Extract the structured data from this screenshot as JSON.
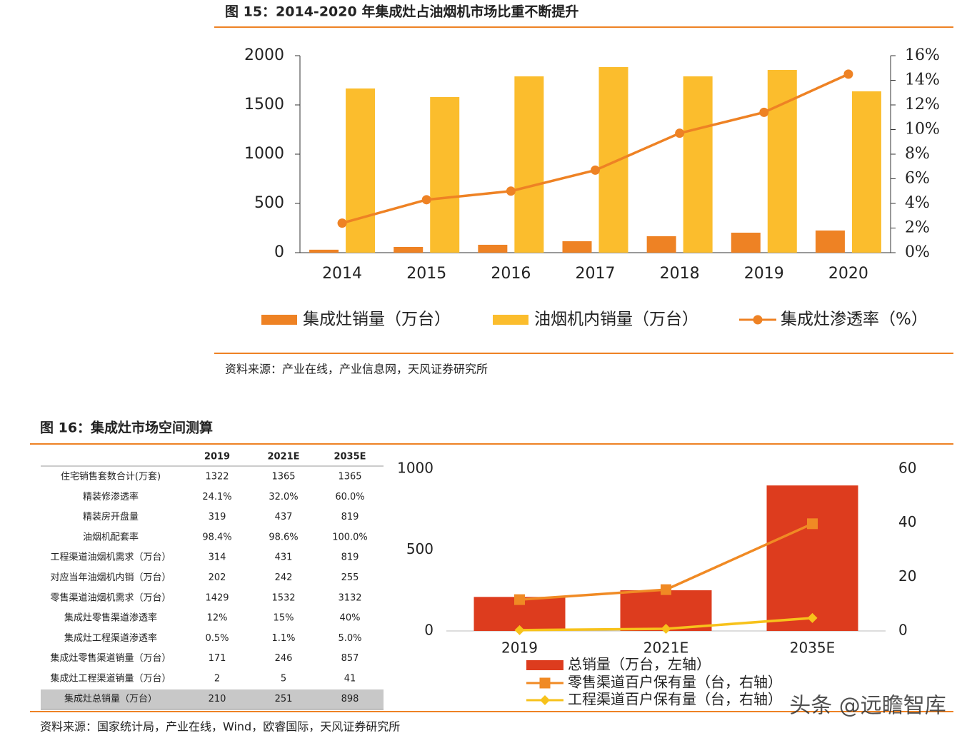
{
  "chart_data": [
    {
      "type": "bar_line",
      "title": "图 15：2014-2020 年集成灶占油烟机市场比重不断提升",
      "source": "资料来源：产业在线，产业信息网，天风证券研究所",
      "categories": [
        "2014",
        "2015",
        "2016",
        "2017",
        "2018",
        "2019",
        "2020"
      ],
      "ylim": [
        0,
        2000
      ],
      "yticks": [
        0,
        500,
        1000,
        1500,
        2000
      ],
      "y2lim": [
        0,
        16
      ],
      "y2ticks": [
        {
          "value": 0,
          "label": "0%"
        },
        {
          "value": 2,
          "label": "2%"
        },
        {
          "value": 4,
          "label": "4%"
        },
        {
          "value": 6,
          "label": "6%"
        },
        {
          "value": 8,
          "label": "8%"
        },
        {
          "value": 10,
          "label": "10%"
        },
        {
          "value": 12,
          "label": "12%"
        },
        {
          "value": 14,
          "label": "14%"
        },
        {
          "value": 16,
          "label": "16%"
        }
      ],
      "series": [
        {
          "name": "集成灶销量（万台）",
          "kind": "bar",
          "color": "#ee8224",
          "values": [
            30,
            58,
            80,
            116,
            167,
            203,
            225
          ]
        },
        {
          "name": "油烟机内销量（万台）",
          "kind": "bar",
          "color": "#fbbd2d",
          "values": [
            1667,
            1580,
            1790,
            1884,
            1790,
            1855,
            1638
          ]
        },
        {
          "name": "集成灶渗透率（%）",
          "kind": "line",
          "marker": "circle",
          "axis": "y2",
          "color": "#ee8224",
          "values": [
            2.4,
            4.3,
            5.0,
            6.7,
            9.7,
            11.4,
            14.5
          ]
        }
      ]
    },
    {
      "type": "bar_line",
      "categories": [
        "2019",
        "2021E",
        "2035E"
      ],
      "ylim": [
        0,
        1000
      ],
      "yticks": [
        0,
        500,
        1000
      ],
      "y2lim": [
        0,
        60
      ],
      "y2ticks": [
        0,
        20,
        40,
        60
      ],
      "series": [
        {
          "name": "总销量（万台，左轴）",
          "kind": "bar",
          "color": "#dd3c1e",
          "values": [
            210,
            251,
            898
          ]
        },
        {
          "name": "零售渠道百户保有量（台，右轴）",
          "kind": "line",
          "marker": "square",
          "axis": "y2",
          "color": "#f08a24",
          "values": [
            11.6,
            15.3,
            39.7
          ]
        },
        {
          "name": "工程渠道百户保有量（台，右轴）",
          "kind": "line",
          "marker": "diamond",
          "axis": "y2",
          "color": "#f7c21b",
          "values": [
            0.3,
            0.8,
            4.8
          ]
        }
      ]
    }
  ],
  "figure16": {
    "title": "图 16：集成灶市场空间测算",
    "source": "资料来源：国家统计局，产业在线，Wind，欧睿国际，天风证券研究所",
    "columns": [
      "2019",
      "2021E",
      "2035E"
    ],
    "rows": [
      [
        "住宅销售套数合计(万套)",
        "1322",
        "1365",
        "1365"
      ],
      [
        "精装修渗透率",
        "24.1%",
        "32.0%",
        "60.0%"
      ],
      [
        "精装房开盘量",
        "319",
        "437",
        "819"
      ],
      [
        "油烟机配套率",
        "98.4%",
        "98.6%",
        "100.0%"
      ],
      [
        "工程渠道油烟机需求（万台）",
        "314",
        "431",
        "819"
      ],
      [
        "对应当年油烟机内销（万台）",
        "202",
        "242",
        "255"
      ],
      [
        "零售渠道油烟机需求（万台）",
        "1429",
        "1532",
        "3132"
      ],
      [
        "集成灶零售渠道渗透率",
        "12%",
        "15%",
        "40%"
      ],
      [
        "集成灶工程渠道渗透率",
        "0.5%",
        "1.1%",
        "5.0%"
      ],
      [
        "集成灶零售渠道销量（万台）",
        "171",
        "246",
        "857"
      ],
      [
        "集成灶工程渠道销量（万台）",
        "2",
        "5",
        "41"
      ],
      [
        "集成灶总销量（万台）",
        "210",
        "251",
        "898"
      ]
    ]
  },
  "watermark": "头条 @远瞻智库"
}
